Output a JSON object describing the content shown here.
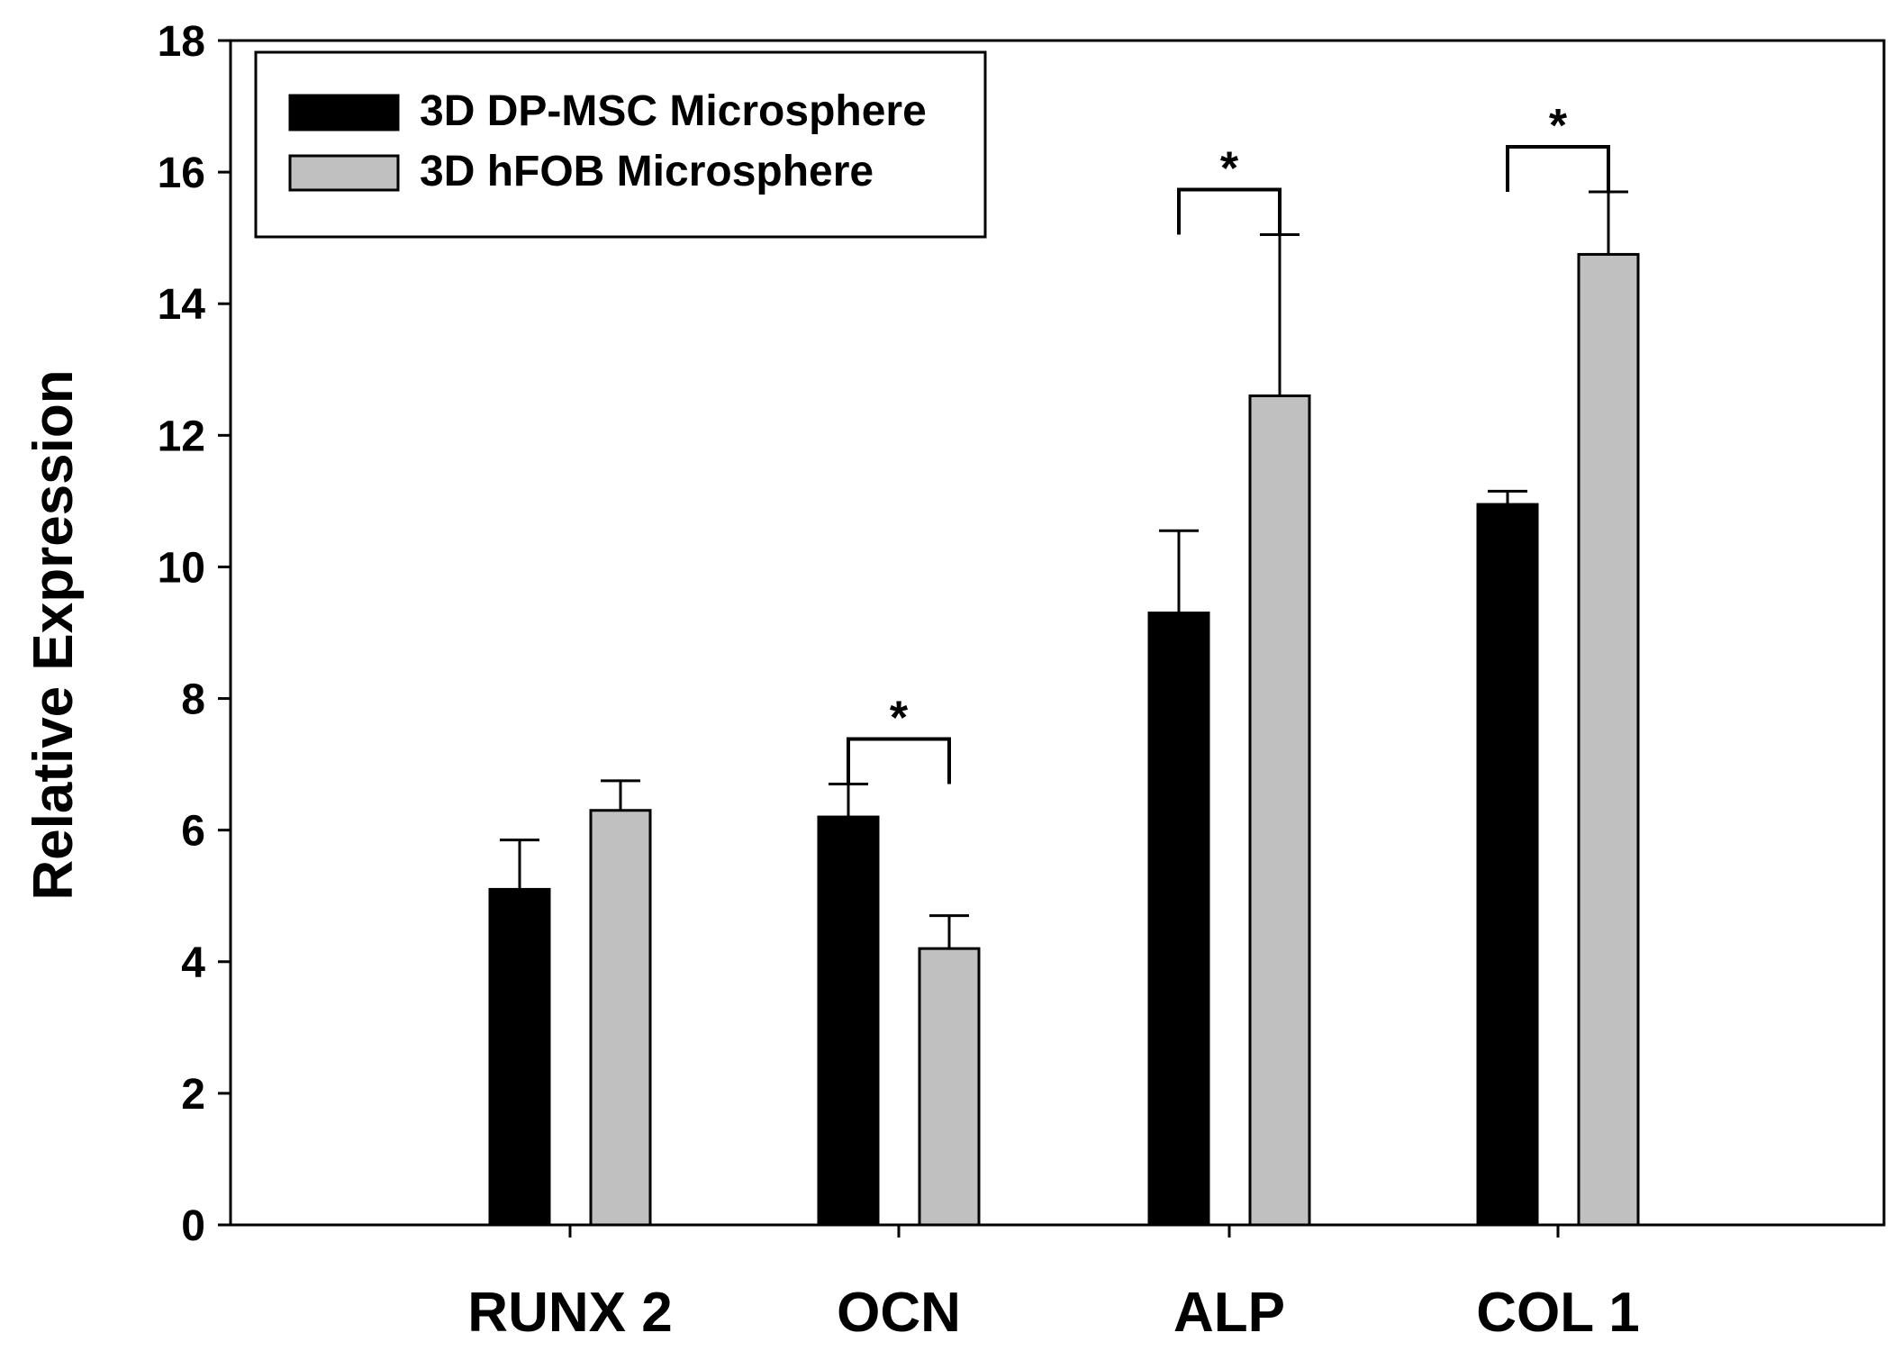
{
  "chart_data": {
    "type": "bar",
    "title": "",
    "xlabel": "",
    "ylabel": "Relative Expression",
    "ylim": [
      0,
      18
    ],
    "yticks": [
      0,
      2,
      4,
      6,
      8,
      10,
      12,
      14,
      16,
      18
    ],
    "grid": false,
    "legend_position": "top-left",
    "categories": [
      "RUNX 2",
      "OCN",
      "ALP",
      "COL 1"
    ],
    "series": [
      {
        "name": "3D DP-MSC Microsphere",
        "color": "#000000",
        "values": [
          5.1,
          6.2,
          9.3,
          10.95
        ],
        "errors": [
          0.75,
          0.5,
          1.25,
          0.2
        ]
      },
      {
        "name": "3D hFOB Microsphere",
        "color": "#c0c0c0",
        "values": [
          6.3,
          4.2,
          12.6,
          14.75
        ],
        "errors": [
          0.45,
          0.5,
          2.45,
          0.95
        ]
      }
    ],
    "significance": [
      {
        "category": "OCN",
        "label": "*"
      },
      {
        "category": "ALP",
        "label": "*"
      },
      {
        "category": "COL 1",
        "label": "*"
      }
    ]
  }
}
